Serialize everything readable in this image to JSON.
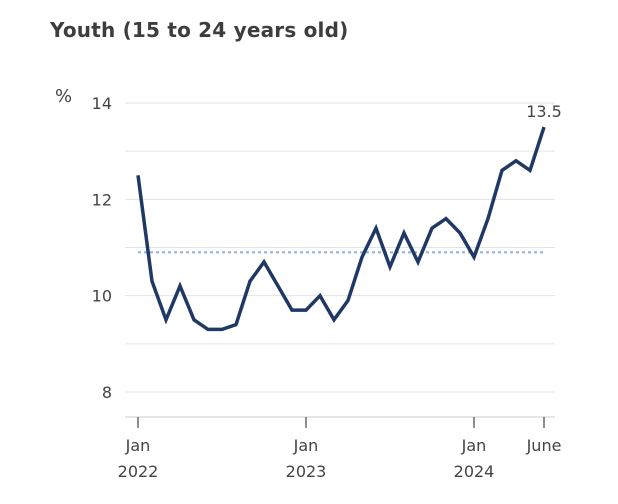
{
  "title": "Youth (15 to 24 years old)",
  "colors": {
    "line": "#1f3864",
    "reference": "#8fb4e8",
    "grid": "#e3e3e3",
    "text": "#444444"
  },
  "chart_data": {
    "type": "line",
    "title": "Youth (15 to 24 years old)",
    "ylabel": "%",
    "ylim": [
      8,
      14
    ],
    "yticks": [
      8,
      10,
      12,
      14
    ],
    "grid": true,
    "x": [
      "2022-01",
      "2022-02",
      "2022-03",
      "2022-04",
      "2022-05",
      "2022-06",
      "2022-07",
      "2022-08",
      "2022-09",
      "2022-10",
      "2022-11",
      "2022-12",
      "2023-01",
      "2023-02",
      "2023-03",
      "2023-04",
      "2023-05",
      "2023-06",
      "2023-07",
      "2023-08",
      "2023-09",
      "2023-10",
      "2023-11",
      "2023-12",
      "2024-01",
      "2024-02",
      "2024-03",
      "2024-04",
      "2024-05",
      "2024-06"
    ],
    "series": [
      {
        "values": [
          12.5,
          10.3,
          9.5,
          10.2,
          9.5,
          9.3,
          9.3,
          9.4,
          10.3,
          10.7,
          10.2,
          9.7,
          9.7,
          10.0,
          9.5,
          9.9,
          10.8,
          11.4,
          10.6,
          11.3,
          10.7,
          11.4,
          11.6,
          11.3,
          10.8,
          11.6,
          12.6,
          12.8,
          12.6,
          13.5
        ]
      }
    ],
    "reference_line": {
      "value": 10.9,
      "style": "dotted"
    },
    "end_label": "13.5",
    "x_tick_labels": [
      {
        "x": "2022-01",
        "line1": "Jan",
        "line2": "2022"
      },
      {
        "x": "2023-01",
        "line1": "Jan",
        "line2": "2023"
      },
      {
        "x": "2024-01",
        "line1": "Jan",
        "line2": "2024"
      },
      {
        "x": "2024-06",
        "line1": "June",
        "line2": ""
      }
    ]
  }
}
